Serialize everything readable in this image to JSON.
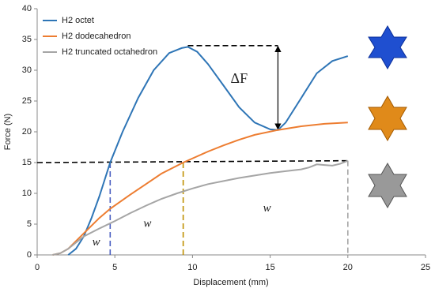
{
  "chart_data": {
    "type": "line",
    "xlabel": "Displacement (mm)",
    "ylabel": "Force (N)",
    "xlim": [
      0,
      25
    ],
    "xticks": [
      0,
      5,
      10,
      15,
      20,
      25
    ],
    "ylim": [
      0,
      40
    ],
    "yticks": [
      0,
      5,
      10,
      15,
      20,
      25,
      30,
      35,
      40
    ],
    "grid": false,
    "legend": "upper-left",
    "series": [
      {
        "name": "H2 octet",
        "color": "#2e75b6",
        "x": [
          2,
          2.5,
          3,
          3.5,
          4,
          4.7,
          5.5,
          6.5,
          7.5,
          8.5,
          9.3,
          9.7,
          10.3,
          11,
          12,
          13,
          14,
          15,
          15.5,
          16,
          17,
          18,
          19,
          20
        ],
        "values": [
          0,
          1,
          3,
          6,
          9.5,
          15,
          20,
          25.5,
          30,
          32.8,
          33.6,
          33.8,
          33,
          31,
          27.5,
          24,
          21.5,
          20.4,
          20.3,
          21.5,
          25.5,
          29.5,
          31.5,
          32.3
        ]
      },
      {
        "name": "H2 dodecahedron",
        "color": "#ed7d31",
        "x": [
          1,
          1.5,
          2,
          3,
          4,
          4.7,
          6,
          7,
          8,
          9.4,
          11,
          12,
          13,
          14,
          15.5,
          17,
          18.5,
          20
        ],
        "values": [
          0,
          0.3,
          1,
          3.5,
          6,
          7.5,
          9.8,
          11.5,
          13.2,
          15,
          16.8,
          17.8,
          18.7,
          19.5,
          20.3,
          20.9,
          21.3,
          21.5
        ]
      },
      {
        "name": "H2 truncated octahedron",
        "color": "#a5a5a5",
        "x": [
          1,
          1.5,
          2,
          3,
          4,
          5,
          6,
          7,
          8,
          9,
          10,
          11,
          12,
          13,
          14,
          15,
          16,
          17,
          17.5,
          18,
          18.5,
          19,
          19.5,
          20
        ],
        "values": [
          0,
          0.3,
          1,
          3,
          4.3,
          5.5,
          6.8,
          8,
          9.1,
          10,
          10.8,
          11.5,
          12,
          12.5,
          12.9,
          13.3,
          13.6,
          13.9,
          14.2,
          14.7,
          14.6,
          14.5,
          14.8,
          15.3
        ]
      }
    ],
    "dashed_lines": [
      {
        "color": "#000000",
        "x": [
          0,
          20
        ],
        "y": [
          15,
          15.3
        ]
      },
      {
        "color": "#000000",
        "x": [
          9.7,
          15.5
        ],
        "y": [
          34,
          34
        ]
      },
      {
        "color": "#4a5fc1",
        "x": [
          4.7,
          4.7
        ],
        "y": [
          15,
          0
        ]
      },
      {
        "color": "#bf9000",
        "x": [
          9.4,
          9.4
        ],
        "y": [
          15,
          0
        ]
      },
      {
        "color": "#a5a5a5",
        "x": [
          20,
          20
        ],
        "y": [
          15.3,
          0
        ]
      }
    ],
    "arrows": [
      {
        "x": 15.5,
        "y": [
          33.9,
          20.4
        ]
      }
    ],
    "annotations": [
      {
        "text": "ΔF",
        "x": 13,
        "y": 28.5,
        "color": "#000000"
      },
      {
        "text": "w",
        "x": 3.8,
        "y": 2,
        "color": "#4a5fc1"
      },
      {
        "text": "w",
        "x": 7.1,
        "y": 5,
        "color": "#d4a020"
      },
      {
        "text": "w",
        "x": 14.8,
        "y": 7.5,
        "color": "#808080"
      }
    ]
  }
}
